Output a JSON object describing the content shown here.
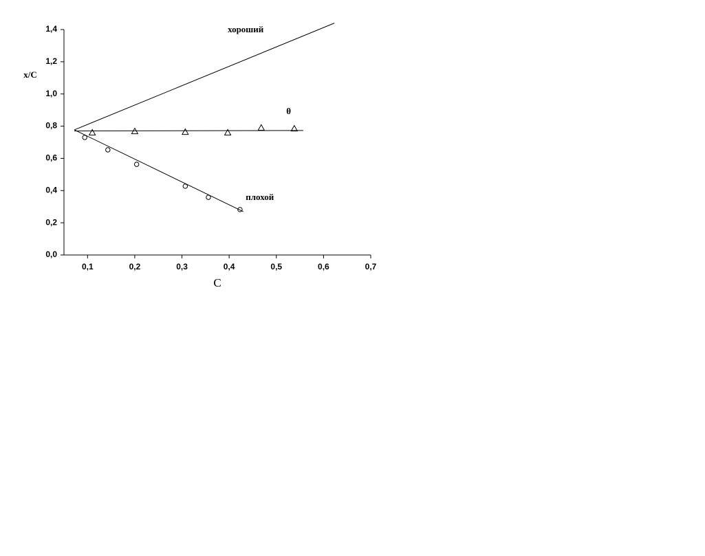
{
  "chart_data": {
    "type": "scatter",
    "x_label": "C",
    "y_label": "x/C",
    "xlim": [
      0.05,
      0.7
    ],
    "ylim": [
      0,
      1.4
    ],
    "xticks": [
      {
        "value": 0.1,
        "label": "0,1"
      },
      {
        "value": 0.2,
        "label": "0,2"
      },
      {
        "value": 0.3,
        "label": "0,3"
      },
      {
        "value": 0.4,
        "label": "0,4"
      },
      {
        "value": 0.5,
        "label": "0,5"
      },
      {
        "value": 0.6,
        "label": "0,6"
      },
      {
        "value": 0.7,
        "label": "0,7"
      }
    ],
    "yticks": [
      {
        "value": 0,
        "label": "0,0"
      },
      {
        "value": 0.2,
        "label": "0,2"
      },
      {
        "value": 0.4,
        "label": "0,4"
      },
      {
        "value": 0.6,
        "label": "0,6"
      },
      {
        "value": 0.8,
        "label": "0,8"
      },
      {
        "value": 1.0,
        "label": "1,0"
      },
      {
        "value": 1.2,
        "label": "1,2"
      },
      {
        "value": 1.4,
        "label": "1,4"
      }
    ],
    "series": [
      {
        "marker": "triangle",
        "color": "#000000",
        "x": [
          0.11,
          0.2,
          0.307,
          0.397,
          0.468,
          0.538
        ],
        "values": [
          0.76,
          0.768,
          0.764,
          0.76,
          0.79,
          0.785
        ]
      },
      {
        "marker": "circle",
        "color": "#000000",
        "x": [
          0.094,
          0.143,
          0.204,
          0.307,
          0.356,
          0.423
        ],
        "values": [
          0.73,
          0.653,
          0.563,
          0.427,
          0.358,
          0.282
        ]
      },
      {
        "marker": "line",
        "color": "#000000",
        "x": [
          0.072,
          0.623
        ],
        "values": [
          0.777,
          1.44
        ]
      },
      {
        "marker": "line",
        "color": "#000000",
        "x": [
          0.072,
          0.557
        ],
        "values": [
          0.77,
          0.773
        ]
      },
      {
        "marker": "line",
        "color": "#000000",
        "x": [
          0.072,
          0.43
        ],
        "values": [
          0.777,
          0.269
        ]
      }
    ],
    "annotations": [
      {
        "text": "хороший",
        "x": 0.435,
        "y": 1.395
      },
      {
        "text": "θ",
        "x": 0.526,
        "y": 0.888
      },
      {
        "text": "плохой",
        "x": 0.465,
        "y": 0.354
      }
    ]
  }
}
